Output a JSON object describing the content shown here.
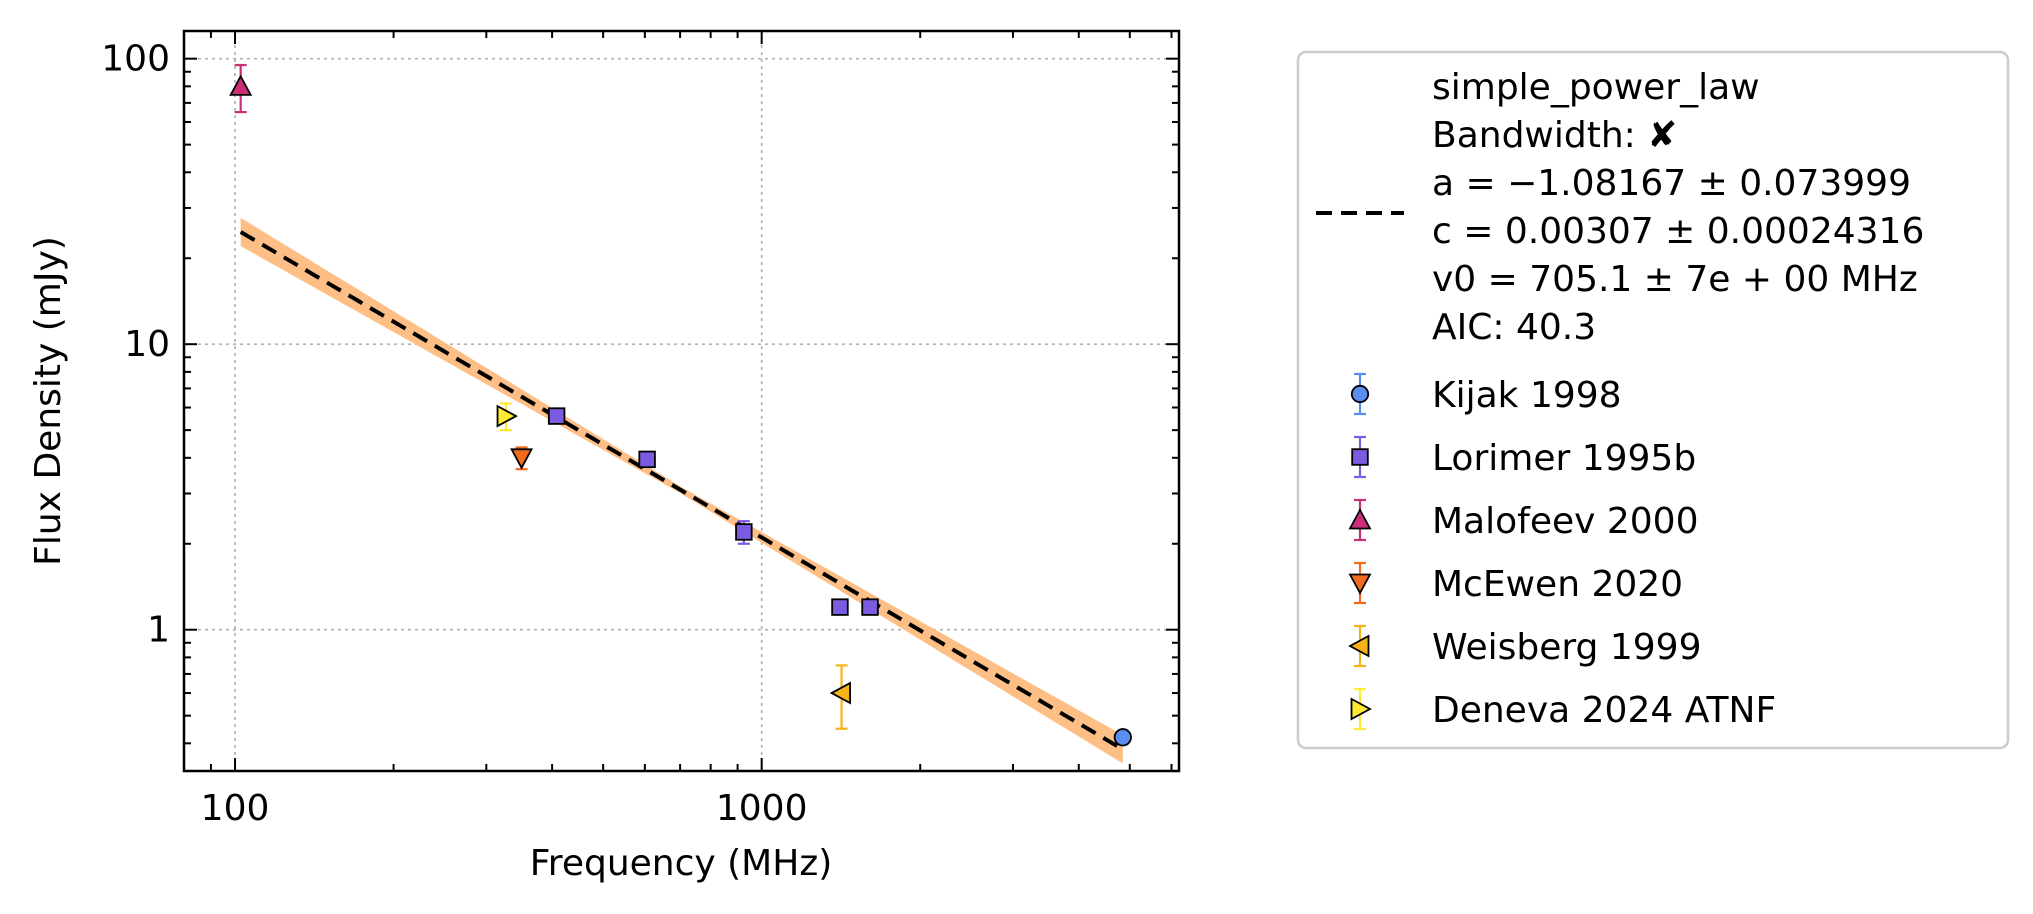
{
  "chart_data": {
    "type": "scatter",
    "xlabel": "Frequency (MHz)",
    "ylabel": "Flux Density (mJy)",
    "x_scale": "log",
    "y_scale": "log",
    "xlim": [
      80,
      6200
    ],
    "ylim": [
      0.32,
      125
    ],
    "x_ticks": [
      {
        "value": 100,
        "label": "100"
      },
      {
        "value": 1000,
        "label": "1000"
      }
    ],
    "y_ticks": [
      {
        "value": 1,
        "label": "1"
      },
      {
        "value": 10,
        "label": "10"
      },
      {
        "value": 100,
        "label": "100"
      }
    ],
    "grid": true,
    "legend_position": "outside-right",
    "fit": {
      "name": "simple_power_law",
      "legend_lines": [
        "simple_power_law",
        "Bandwidth: ✘",
        "a = −1.08167 ± 0.073999",
        "c = 0.00307 ± 0.00024316",
        "v0 = 705.1 ± 7e + 00 MHz",
        "AIC: 40.3"
      ],
      "a": -1.08167,
      "c": 0.00307,
      "v0": 705.1,
      "line_color": "#000000",
      "band_color": "#fdbf86",
      "band_frac_low": 0.82,
      "band_frac_high": 1.21
    },
    "series": [
      {
        "name": "Kijak 1998",
        "marker": "circle",
        "color": "#5b8def",
        "points": [
          {
            "x": 4850,
            "y": 0.42,
            "yerr": 0.02
          }
        ]
      },
      {
        "name": "Lorimer 1995b",
        "marker": "square",
        "color": "#7b5ce0",
        "points": [
          {
            "x": 408,
            "y": 5.6,
            "yerr": 0.3
          },
          {
            "x": 606,
            "y": 3.95,
            "yerr": 0.2
          },
          {
            "x": 925,
            "y": 2.2,
            "yerr": 0.2
          },
          {
            "x": 1408,
            "y": 1.2,
            "yerr": 0.05
          },
          {
            "x": 1606,
            "y": 1.2,
            "yerr": 0.05
          }
        ]
      },
      {
        "name": "Malofeev 2000",
        "marker": "triangle-up",
        "color": "#cc2f7a",
        "points": [
          {
            "x": 102.5,
            "y": 80,
            "yerr": 15
          }
        ]
      },
      {
        "name": "McEwen 2020",
        "marker": "triangle-down",
        "color": "#f26b1f",
        "points": [
          {
            "x": 350,
            "y": 4.0,
            "yerr": 0.35
          }
        ]
      },
      {
        "name": "Weisberg 1999",
        "marker": "triangle-left",
        "color": "#f7b21a",
        "points": [
          {
            "x": 1418,
            "y": 0.6,
            "yerr": 0.15
          }
        ]
      },
      {
        "name": "Deneva 2024 ATNF",
        "marker": "triangle-right",
        "color": "#ffe933",
        "points": [
          {
            "x": 327,
            "y": 5.6,
            "yerr": 0.6
          }
        ]
      }
    ]
  }
}
